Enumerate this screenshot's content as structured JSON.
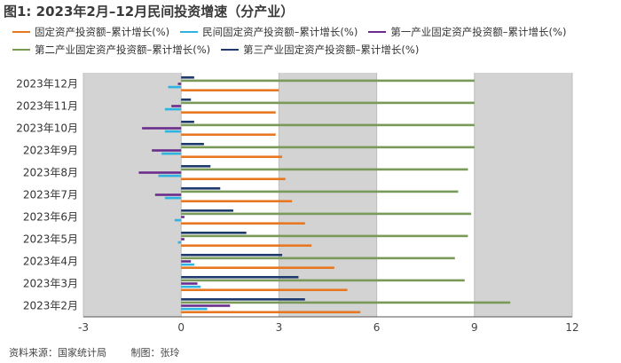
{
  "title": "图1: 2023年2月–12月民间投资增速（分产业）",
  "footer": {
    "source": "资料来源：国家统计局",
    "author": "制图：张玲"
  },
  "chart_data": {
    "type": "bar",
    "orientation": "horizontal",
    "categories": [
      "2023年12月",
      "2023年11月",
      "2023年10月",
      "2023年9月",
      "2023年8月",
      "2023年7月",
      "2023年6月",
      "2023年5月",
      "2023年4月",
      "2023年3月",
      "2023年2月"
    ],
    "xlim": [
      -3,
      12
    ],
    "xticks": [
      "-3",
      "0",
      "3",
      "6",
      "9",
      "12"
    ],
    "series": [
      {
        "name": "固定资产投资额–累计增长(%)",
        "color": "#e87722",
        "values": [
          3.0,
          2.9,
          2.9,
          3.1,
          3.2,
          3.4,
          3.8,
          4.0,
          4.7,
          5.1,
          5.5
        ]
      },
      {
        "name": "民间固定资产投资额–累计增长(%)",
        "color": "#2fb3e0",
        "values": [
          -0.4,
          -0.5,
          -0.5,
          -0.6,
          -0.7,
          -0.5,
          -0.2,
          -0.1,
          0.4,
          0.6,
          0.8
        ]
      },
      {
        "name": "第一产业固定资产投资额–累计增长(%)",
        "color": "#6b2d8c",
        "values": [
          -0.1,
          -0.3,
          -1.2,
          -0.9,
          -1.3,
          -0.8,
          0.1,
          0.1,
          0.3,
          0.5,
          1.5
        ]
      },
      {
        "name": "第二产业固定资产投资额–累计增长(%)",
        "color": "#7a9a5a",
        "values": [
          9.0,
          9.0,
          9.0,
          9.0,
          8.8,
          8.5,
          8.9,
          8.8,
          8.4,
          8.7,
          10.1
        ]
      },
      {
        "name": "第三产业固定资产投资额–累计增长(%)",
        "color": "#1f3b6e",
        "values": [
          0.4,
          0.3,
          0.4,
          0.7,
          0.9,
          1.2,
          1.6,
          2.0,
          3.1,
          3.6,
          3.8
        ]
      }
    ]
  }
}
